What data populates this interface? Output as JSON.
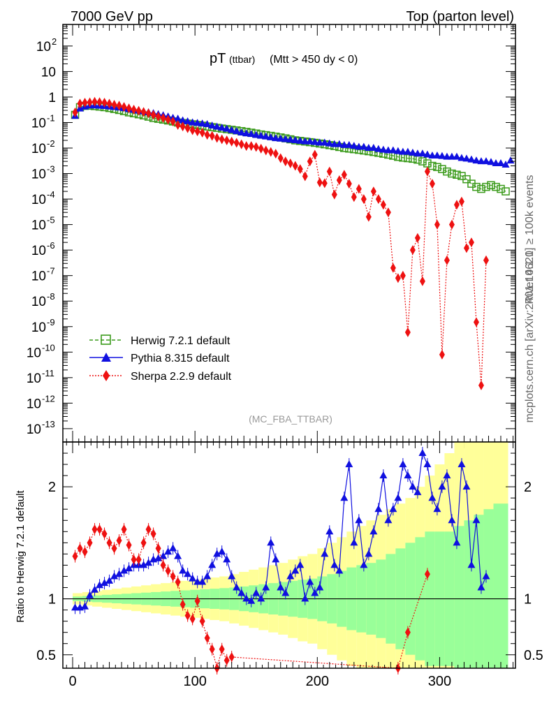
{
  "header": {
    "left": "7000 GeV pp",
    "right": "Top (parton level)"
  },
  "side_labels": {
    "rivet": "Rivet 4.1.0, ≥ 100k events",
    "mcplots": "mcplots.cern.ch [arXiv:2401.10621]"
  },
  "chart_data": {
    "type": "line",
    "title_main": "pT",
    "title_sub": "(ttbar)",
    "title_rest": "(Mtt > 450 dy < 0)",
    "analysis": "(MC_FBA_TTBAR)",
    "xlabel": "",
    "xlim": [
      -8,
      362
    ],
    "x_ticks": [
      0,
      100,
      200,
      300
    ],
    "upper": {
      "ylabel": "",
      "yscale": "log",
      "ylim": [
        3e-14,
        700
      ],
      "y_ticks": [
        {
          "v": 100,
          "base": "10",
          "exp": "2"
        },
        {
          "v": 10,
          "base": "10",
          "exp": ""
        },
        {
          "v": 1,
          "base": "1",
          "exp": ""
        },
        {
          "v": 0.1,
          "base": "10",
          "exp": "-1"
        },
        {
          "v": 0.01,
          "base": "10",
          "exp": "-2"
        },
        {
          "v": 0.001,
          "base": "10",
          "exp": "-3"
        },
        {
          "v": 0.0001,
          "base": "10",
          "exp": "-4"
        },
        {
          "v": 1e-05,
          "base": "10",
          "exp": "-5"
        },
        {
          "v": 1e-06,
          "base": "10",
          "exp": "-6"
        },
        {
          "v": 1e-07,
          "base": "10",
          "exp": "-7"
        },
        {
          "v": 1e-08,
          "base": "10",
          "exp": "-8"
        },
        {
          "v": 1e-09,
          "base": "10",
          "exp": "-9"
        },
        {
          "v": 1e-10,
          "base": "10",
          "exp": "-10"
        },
        {
          "v": 1e-11,
          "base": "10",
          "exp": "-11"
        },
        {
          "v": 1e-12,
          "base": "10",
          "exp": "-12"
        },
        {
          "v": 1e-13,
          "base": "10",
          "exp": "-13"
        }
      ]
    },
    "ratio": {
      "ylabel": "Ratio to Herwig 7.2.1 default",
      "ylim": [
        0.38,
        2.4
      ],
      "y_ticks": [
        {
          "v": 0.5,
          "label": "0.5"
        },
        {
          "v": 1,
          "label": "1"
        },
        {
          "v": 2,
          "label": "2"
        }
      ]
    },
    "series": [
      {
        "name": "Herwig 7.2.1 default",
        "color": "#3a9a1a",
        "marker": "open-square",
        "dash": "5,3",
        "x": [
          2,
          6,
          10,
          14,
          18,
          22,
          26,
          30,
          34,
          38,
          42,
          46,
          50,
          54,
          58,
          62,
          66,
          70,
          74,
          78,
          82,
          86,
          90,
          94,
          98,
          102,
          106,
          110,
          114,
          118,
          122,
          126,
          130,
          134,
          138,
          142,
          146,
          150,
          154,
          158,
          162,
          166,
          170,
          174,
          178,
          182,
          186,
          190,
          194,
          198,
          202,
          206,
          210,
          214,
          218,
          222,
          226,
          230,
          234,
          238,
          242,
          246,
          250,
          254,
          258,
          262,
          266,
          270,
          274,
          278,
          282,
          286,
          290,
          294,
          298,
          302,
          306,
          310,
          314,
          318,
          322,
          326,
          330,
          334,
          338,
          342,
          346,
          350,
          354
        ],
        "values": [
          0.2,
          0.4,
          0.45,
          0.46,
          0.44,
          0.42,
          0.4,
          0.37,
          0.34,
          0.31,
          0.28,
          0.25,
          0.23,
          0.21,
          0.19,
          0.17,
          0.15,
          0.14,
          0.13,
          0.12,
          0.11,
          0.1,
          0.095,
          0.09,
          0.085,
          0.08,
          0.075,
          0.07,
          0.066,
          0.062,
          0.058,
          0.055,
          0.052,
          0.049,
          0.046,
          0.043,
          0.04,
          0.037,
          0.034,
          0.032,
          0.03,
          0.028,
          0.026,
          0.024,
          0.022,
          0.02,
          0.019,
          0.018,
          0.017,
          0.016,
          0.015,
          0.014,
          0.013,
          0.012,
          0.011,
          0.01,
          0.0095,
          0.009,
          0.0085,
          0.008,
          0.0075,
          0.007,
          0.0065,
          0.006,
          0.0055,
          0.005,
          0.0045,
          0.0042,
          0.004,
          0.0038,
          0.0035,
          0.003,
          0.0025,
          0.002,
          0.0018,
          0.0015,
          0.0012,
          0.001,
          0.0009,
          0.0008,
          0.0006,
          0.0004,
          0.0003,
          0.00025,
          0.0003,
          0.00035,
          0.0003,
          0.00025,
          0.0002
        ]
      },
      {
        "name": "Pythia 8.315 default",
        "color": "#1010e0",
        "marker": "triangle",
        "dash": "",
        "x": [
          2,
          6,
          10,
          14,
          18,
          22,
          26,
          30,
          34,
          38,
          42,
          46,
          50,
          54,
          58,
          62,
          66,
          70,
          74,
          78,
          82,
          86,
          90,
          94,
          98,
          102,
          106,
          110,
          114,
          118,
          122,
          126,
          130,
          134,
          138,
          142,
          146,
          150,
          154,
          158,
          162,
          166,
          170,
          174,
          178,
          182,
          186,
          190,
          194,
          198,
          202,
          206,
          210,
          214,
          218,
          222,
          226,
          230,
          234,
          238,
          242,
          246,
          250,
          254,
          258,
          262,
          266,
          270,
          274,
          278,
          282,
          286,
          290,
          294,
          298,
          302,
          306,
          310,
          314,
          318,
          322,
          326,
          330,
          334,
          338,
          342,
          346,
          350,
          354,
          358
        ],
        "values": [
          0.18,
          0.35,
          0.42,
          0.46,
          0.46,
          0.45,
          0.44,
          0.42,
          0.4,
          0.38,
          0.36,
          0.33,
          0.31,
          0.29,
          0.27,
          0.25,
          0.23,
          0.21,
          0.19,
          0.17,
          0.15,
          0.14,
          0.12,
          0.11,
          0.1,
          0.095,
          0.09,
          0.085,
          0.075,
          0.068,
          0.062,
          0.056,
          0.05,
          0.045,
          0.04,
          0.037,
          0.035,
          0.032,
          0.03,
          0.028,
          0.026,
          0.024,
          0.023,
          0.022,
          0.021,
          0.02,
          0.019,
          0.018,
          0.018,
          0.017,
          0.016,
          0.016,
          0.015,
          0.014,
          0.014,
          0.013,
          0.013,
          0.012,
          0.011,
          0.011,
          0.01,
          0.01,
          0.009,
          0.0085,
          0.008,
          0.008,
          0.0075,
          0.007,
          0.007,
          0.0065,
          0.006,
          0.006,
          0.0055,
          0.005,
          0.005,
          0.0048,
          0.0045,
          0.0045,
          0.0045,
          0.004,
          0.0038,
          0.0035,
          0.0032,
          0.003,
          0.003,
          0.0028,
          0.0025,
          0.0025,
          0.0022,
          0.0032
        ]
      },
      {
        "name": "Sherpa 2.2.9 default",
        "color": "#ee1111",
        "marker": "diamond",
        "dash": "2,2",
        "x": [
          2,
          6,
          10,
          14,
          18,
          22,
          26,
          30,
          34,
          38,
          42,
          46,
          50,
          54,
          58,
          62,
          66,
          70,
          74,
          78,
          82,
          86,
          90,
          94,
          98,
          102,
          106,
          110,
          114,
          118,
          122,
          126,
          130,
          134,
          138,
          142,
          146,
          150,
          154,
          158,
          162,
          166,
          170,
          174,
          178,
          182,
          186,
          190,
          194,
          198,
          202,
          206,
          210,
          214,
          218,
          222,
          226,
          230,
          234,
          238,
          242,
          246,
          250,
          254,
          258,
          262,
          266,
          270,
          274,
          278,
          282,
          286,
          290,
          294,
          298,
          302,
          306,
          310,
          314,
          318,
          322,
          326,
          330,
          334,
          338
        ],
        "values": [
          0.25,
          0.55,
          0.6,
          0.62,
          0.65,
          0.63,
          0.6,
          0.55,
          0.5,
          0.46,
          0.41,
          0.36,
          0.32,
          0.29,
          0.26,
          0.23,
          0.2,
          0.17,
          0.15,
          0.13,
          0.11,
          0.08,
          0.07,
          0.06,
          0.05,
          0.045,
          0.04,
          0.033,
          0.03,
          0.025,
          0.022,
          0.02,
          0.018,
          0.016,
          0.014,
          0.012,
          0.012,
          0.011,
          0.0095,
          0.008,
          0.007,
          0.006,
          0.004,
          0.003,
          0.0025,
          0.002,
          0.0015,
          0.00078,
          0.003,
          0.0055,
          0.00045,
          0.00042,
          0.0012,
          0.00015,
          0.00055,
          0.0009,
          0.0004,
          0.00012,
          0.00025,
          0.0001,
          2e-05,
          0.0002,
          0.0001,
          6e-05,
          3e-05,
          2e-07,
          8e-08,
          1e-07,
          6e-10,
          1e-06,
          3e-06,
          6e-08,
          0.0012,
          0.0004,
          1e-05,
          8e-11,
          4e-07,
          1e-05,
          6e-05,
          8e-05,
          1.2e-06,
          2e-06,
          1.5e-09,
          5e-12,
          4e-07
        ]
      }
    ],
    "ratio_series": [
      {
        "name": "Pythia 8.315 default",
        "x": [
          2,
          6,
          10,
          14,
          18,
          22,
          26,
          30,
          34,
          38,
          42,
          46,
          50,
          54,
          58,
          62,
          66,
          70,
          74,
          78,
          82,
          86,
          90,
          94,
          98,
          102,
          106,
          110,
          114,
          118,
          122,
          126,
          130,
          134,
          138,
          142,
          146,
          150,
          154,
          158,
          162,
          166,
          170,
          174,
          178,
          182,
          186,
          190,
          194,
          198,
          202,
          206,
          210,
          214,
          218,
          222,
          226,
          230,
          234,
          238,
          242,
          246,
          250,
          254,
          258,
          262,
          266,
          270,
          274,
          278,
          282,
          286,
          290,
          294,
          298,
          302,
          306,
          310,
          314,
          318,
          322,
          326,
          330,
          334,
          338
        ],
        "values": [
          0.92,
          0.92,
          0.93,
          1.03,
          1.08,
          1.12,
          1.14,
          1.16,
          1.2,
          1.22,
          1.25,
          1.27,
          1.3,
          1.3,
          1.3,
          1.32,
          1.35,
          1.36,
          1.38,
          1.42,
          1.45,
          1.38,
          1.25,
          1.22,
          1.18,
          1.15,
          1.15,
          1.2,
          1.3,
          1.4,
          1.42,
          1.35,
          1.2,
          1.1,
          1.05,
          1.0,
          0.98,
          1.05,
          1.0,
          1.1,
          1.5,
          1.35,
          1.1,
          1.05,
          1.2,
          1.25,
          1.3,
          1.0,
          1.15,
          1.05,
          1.1,
          1.4,
          1.6,
          1.3,
          1.25,
          1.9,
          2.2,
          1.5,
          1.7,
          1.3,
          1.4,
          1.6,
          1.8,
          2.1,
          1.7,
          1.8,
          1.9,
          2.2,
          2.1,
          2.0,
          1.95,
          2.3,
          2.2,
          1.9,
          1.8,
          2.0,
          2.1,
          1.7,
          1.5,
          2.2,
          2.0,
          1.3,
          1.7,
          1.1,
          1.2
        ]
      },
      {
        "name": "Sherpa 2.2.9 default",
        "x": [
          2,
          6,
          10,
          14,
          18,
          22,
          26,
          30,
          34,
          38,
          42,
          46,
          50,
          54,
          58,
          62,
          66,
          70,
          74,
          78,
          82,
          86,
          90,
          94,
          98,
          102,
          106,
          110,
          114,
          118,
          122,
          126,
          130,
          266,
          274,
          290
        ],
        "values": [
          1.38,
          1.45,
          1.42,
          1.5,
          1.62,
          1.62,
          1.58,
          1.5,
          1.45,
          1.52,
          1.62,
          1.48,
          1.35,
          1.35,
          1.5,
          1.62,
          1.58,
          1.45,
          1.3,
          1.25,
          1.2,
          1.15,
          0.95,
          0.85,
          0.82,
          0.98,
          0.8,
          0.65,
          0.55,
          0.38,
          0.55,
          0.45,
          0.48,
          0.38,
          0.7,
          1.22
        ]
      }
    ],
    "ratio_bands": {
      "x_start": [
        0,
        8,
        16,
        24,
        32,
        40,
        48,
        56,
        64,
        72,
        80,
        88,
        96,
        104,
        112,
        120,
        128,
        136,
        144,
        152,
        160,
        168,
        176,
        184,
        192,
        200,
        208,
        216,
        224,
        232,
        240,
        248,
        256,
        264,
        272,
        280,
        288,
        296,
        304,
        312,
        320,
        328,
        336,
        344,
        352
      ],
      "x_end": [
        8,
        16,
        24,
        32,
        40,
        48,
        56,
        64,
        72,
        80,
        88,
        96,
        104,
        112,
        120,
        128,
        136,
        144,
        152,
        160,
        168,
        176,
        184,
        192,
        200,
        208,
        216,
        224,
        232,
        240,
        248,
        256,
        264,
        272,
        280,
        288,
        296,
        304,
        312,
        320,
        328,
        336,
        344,
        352,
        356
      ],
      "stat": [
        0.02,
        0.025,
        0.03,
        0.035,
        0.04,
        0.045,
        0.05,
        0.055,
        0.06,
        0.065,
        0.07,
        0.075,
        0.08,
        0.085,
        0.09,
        0.095,
        0.1,
        0.11,
        0.12,
        0.13,
        0.14,
        0.15,
        0.16,
        0.17,
        0.18,
        0.2,
        0.22,
        0.25,
        0.28,
        0.3,
        0.32,
        0.35,
        0.4,
        0.45,
        0.5,
        0.55,
        0.6,
        0.6,
        0.6,
        0.65,
        0.7,
        0.75,
        0.8,
        0.85,
        0.85
      ],
      "total": [
        0.05,
        0.06,
        0.07,
        0.08,
        0.09,
        0.1,
        0.11,
        0.12,
        0.13,
        0.14,
        0.15,
        0.16,
        0.17,
        0.18,
        0.19,
        0.2,
        0.22,
        0.24,
        0.26,
        0.28,
        0.3,
        0.32,
        0.35,
        0.38,
        0.4,
        0.45,
        0.5,
        0.55,
        0.6,
        0.65,
        0.7,
        0.75,
        0.8,
        0.85,
        0.9,
        1.0,
        1.1,
        1.2,
        1.3,
        1.4,
        1.5,
        1.6,
        1.7,
        1.8,
        1.9
      ],
      "stat_color": "#99ff99",
      "total_color": "#ffff99"
    }
  }
}
